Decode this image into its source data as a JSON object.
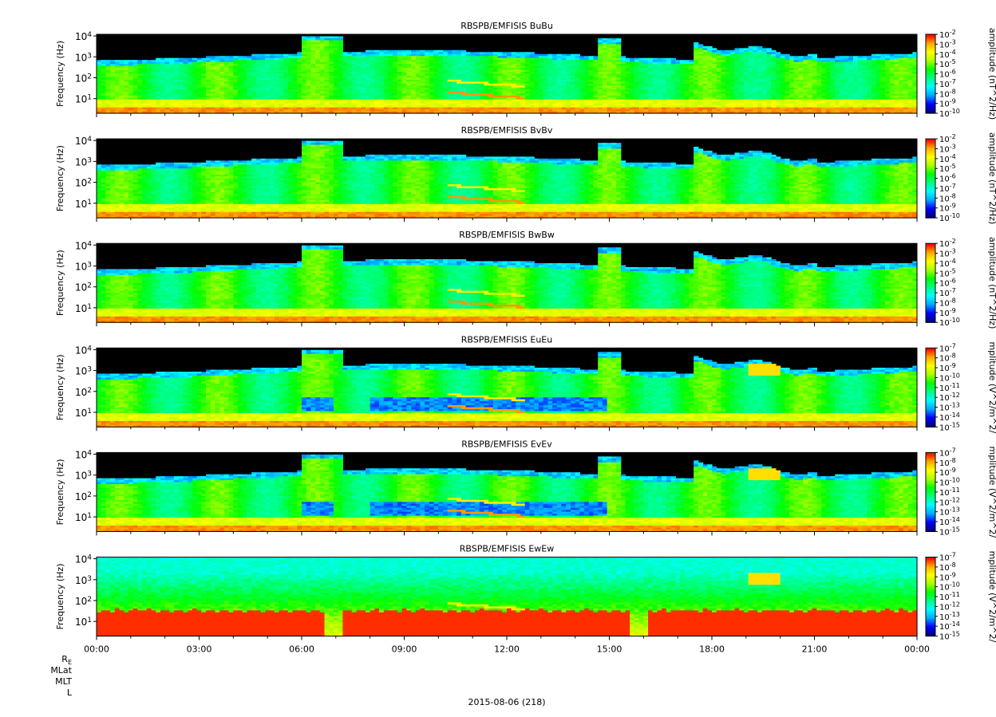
{
  "chart_data": {
    "type": "heatmap",
    "date_label": "2015-08-06 (218)",
    "x_ticks": [
      "00:00",
      "03:00",
      "06:00",
      "09:00",
      "12:00",
      "15:00",
      "18:00",
      "21:00",
      "00:00"
    ],
    "x_range_hours": [
      0,
      24
    ],
    "ephemeris_labels": [
      "R_E",
      "MLat",
      "MLT",
      "L"
    ],
    "y_axis": {
      "label": "Frequency (Hz)",
      "scale": "log",
      "ticks": [
        "10^1",
        "10^2",
        "10^3",
        "10^4"
      ],
      "range_hz": [
        2,
        12000
      ]
    },
    "colormap": [
      "#000080",
      "#0000ff",
      "#00aaff",
      "#00ffff",
      "#00ff80",
      "#00ff00",
      "#aaff00",
      "#ffff00",
      "#ffaa00",
      "#ff0000"
    ],
    "panels": [
      {
        "title": "RBSPB/EMFISIS  BuBu",
        "colorbar_label": "amplitude (nT^2/Hz)",
        "colorbar_ticks": [
          "10^-2",
          "10^-3",
          "10^-4",
          "10^-5",
          "10^-6",
          "10^-7",
          "10^-8",
          "10^-9",
          "10^-10"
        ],
        "kind": "B"
      },
      {
        "title": "RBSPB/EMFISIS  BvBv",
        "colorbar_label": "amplitude (nT^2/Hz)",
        "colorbar_ticks": [
          "10^-2",
          "10^-3",
          "10^-4",
          "10^-5",
          "10^-6",
          "10^-7",
          "10^-8",
          "10^-9",
          "10^-10"
        ],
        "kind": "B"
      },
      {
        "title": "RBSPB/EMFISIS  BwBw",
        "colorbar_label": "amplitude (nT^2/Hz)",
        "colorbar_ticks": [
          "10^-2",
          "10^-3",
          "10^-4",
          "10^-5",
          "10^-6",
          "10^-7",
          "10^-8",
          "10^-9",
          "10^-10"
        ],
        "kind": "B"
      },
      {
        "title": "RBSPB/EMFISIS  EuEu",
        "colorbar_label": "mplitude (V^2/m^2/",
        "colorbar_ticks": [
          "10^-7",
          "10^-8",
          "10^-9",
          "10^-10",
          "10^-11",
          "10^-12",
          "10^-13",
          "10^-14",
          "10^-15"
        ],
        "kind": "E"
      },
      {
        "title": "RBSPB/EMFISIS  EvEv",
        "colorbar_label": "mplitude (V^2/m^2/",
        "colorbar_ticks": [
          "10^-7",
          "10^-8",
          "10^-9",
          "10^-10",
          "10^-11",
          "10^-12",
          "10^-13",
          "10^-14",
          "10^-15"
        ],
        "kind": "E"
      },
      {
        "title": "RBSPB/EMFISIS  EwEw",
        "colorbar_label": "mplitude (V^2/m^2/",
        "colorbar_ticks": [
          "10^-7",
          "10^-8",
          "10^-9",
          "10^-10",
          "10^-11",
          "10^-12",
          "10^-13",
          "10^-14",
          "10^-15"
        ],
        "kind": "Ew"
      }
    ]
  }
}
